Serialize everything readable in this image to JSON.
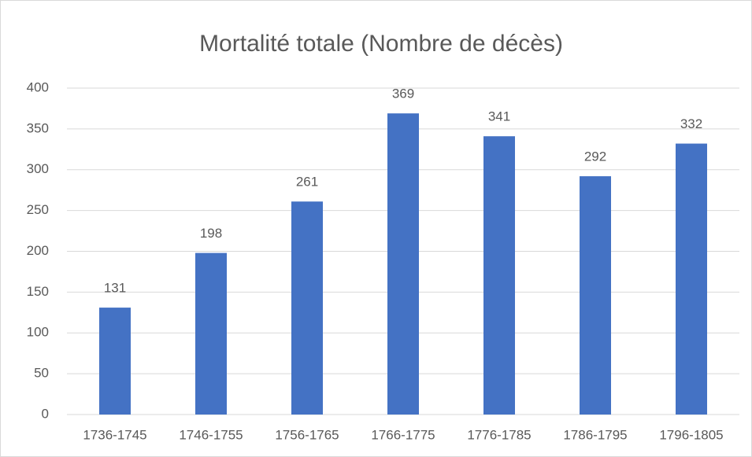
{
  "chart_data": {
    "type": "bar",
    "title": "Mortalité totale (Nombre de décès)",
    "categories": [
      "1736-1745",
      "1746-1755",
      "1756-1765",
      "1766-1775",
      "1776-1785",
      "1786-1795",
      "1796-1805"
    ],
    "values": [
      131,
      198,
      261,
      369,
      341,
      292,
      332
    ],
    "color": "#4472c4",
    "ylim": [
      0,
      400
    ],
    "yticks": [
      0,
      50,
      100,
      150,
      200,
      250,
      300,
      350,
      400
    ],
    "grid": true,
    "data_labels": true
  }
}
